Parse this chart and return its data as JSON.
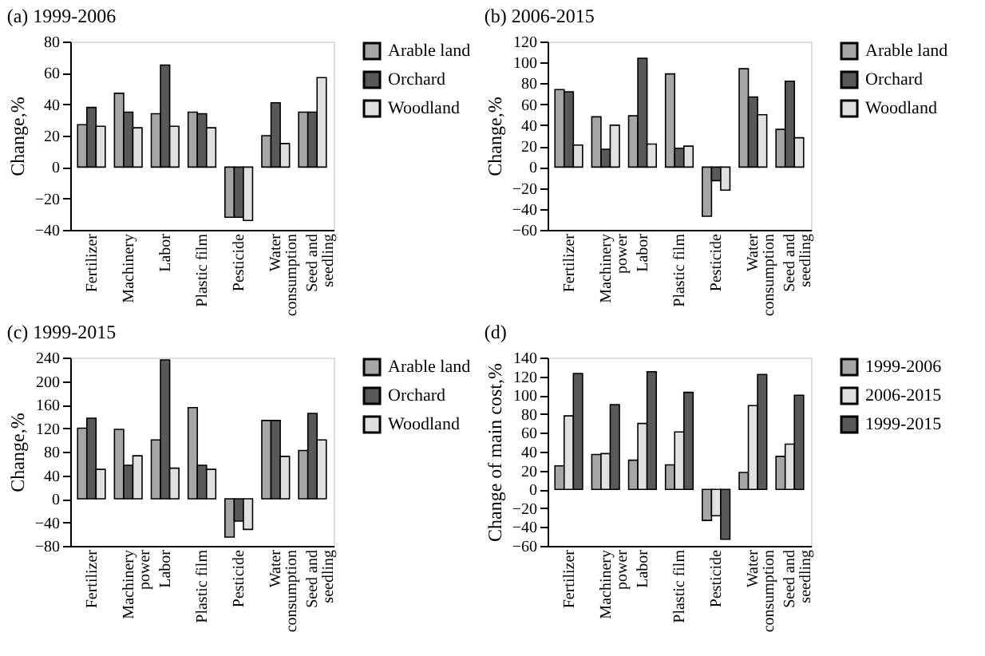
{
  "chart_data": [
    {
      "type": "bar",
      "title": "(a) 1999-2006",
      "ylabel": "Change,%",
      "categories": [
        "Fertilizer",
        "Machinery",
        "Labor",
        "Plastic film",
        "Pesticide",
        "Water\nconsumption",
        "Seed and\nseedling"
      ],
      "ylim": [
        -40,
        80
      ],
      "yticks": [
        -40,
        -20,
        0,
        20,
        40,
        60,
        80
      ],
      "legend": "right",
      "series": [
        {
          "name": "Arable land",
          "color": "#a6a6a6",
          "values": [
            27,
            47,
            34,
            35,
            -32,
            20,
            35
          ]
        },
        {
          "name": "Orchard",
          "color": "#595959",
          "values": [
            38,
            35,
            65,
            34,
            -32,
            41,
            35
          ]
        },
        {
          "name": "Woodland",
          "color": "#e0e0e0",
          "values": [
            26,
            25,
            26,
            25,
            -34,
            15,
            57
          ]
        }
      ]
    },
    {
      "type": "bar",
      "title": "(b) 2006-2015",
      "ylabel": "Change,%",
      "categories": [
        "Fertilizer",
        "Machinery\npower",
        "Labor",
        "Plastic film",
        "Pesticide",
        "Water\nconsumption",
        "Seed and\nseedling"
      ],
      "ylim": [
        -60,
        120
      ],
      "yticks": [
        -60,
        -40,
        -20,
        0,
        20,
        40,
        60,
        80,
        100,
        120
      ],
      "legend": "right",
      "series": [
        {
          "name": "Arable land",
          "color": "#a6a6a6",
          "values": [
            74,
            48,
            49,
            89,
            -47,
            94,
            36
          ]
        },
        {
          "name": "Orchard",
          "color": "#595959",
          "values": [
            72,
            17,
            104,
            18,
            -13,
            67,
            82
          ]
        },
        {
          "name": "Woodland",
          "color": "#e0e0e0",
          "values": [
            21,
            40,
            22,
            20,
            -22,
            50,
            28
          ]
        }
      ]
    },
    {
      "type": "bar",
      "title": "(c) 1999-2015",
      "ylabel": "Change,%",
      "categories": [
        "Fertilizer",
        "Machinery\npower",
        "Labor",
        "Plastic film",
        "Pesticide",
        "Water\nconsumption",
        "Seed and\nseedling"
      ],
      "ylim": [
        -80,
        240
      ],
      "yticks": [
        -80,
        -40,
        0,
        40,
        80,
        120,
        160,
        200,
        240
      ],
      "legend": "right",
      "series": [
        {
          "name": "Arable land",
          "color": "#a6a6a6",
          "values": [
            120,
            118,
            100,
            155,
            -65,
            133,
            82
          ]
        },
        {
          "name": "Orchard",
          "color": "#595959",
          "values": [
            137,
            57,
            236,
            57,
            -38,
            133,
            145
          ]
        },
        {
          "name": "Woodland",
          "color": "#e0e0e0",
          "values": [
            50,
            73,
            52,
            50,
            -52,
            72,
            100
          ]
        }
      ]
    },
    {
      "type": "bar",
      "title": "(d)",
      "ylabel": "Change of main cost,%",
      "categories": [
        "Fertilizer",
        "Machinery\npower",
        "Labor",
        "Plastic film",
        "Pesticide",
        "Water\nconsumption",
        "Seed and\nseedling"
      ],
      "ylim": [
        -60,
        140
      ],
      "yticks": [
        -60,
        -40,
        -20,
        0,
        20,
        40,
        60,
        80,
        100,
        120,
        140
      ],
      "legend": "right",
      "series": [
        {
          "name": "1999-2006",
          "color": "#a6a6a6",
          "values": [
            25,
            37,
            31,
            26,
            -33,
            18,
            35
          ]
        },
        {
          "name": "2006-2015",
          "color": "#e0e0e0",
          "values": [
            78,
            38,
            70,
            61,
            -28,
            89,
            48
          ]
        },
        {
          "name": "1999-2015",
          "color": "#595959",
          "values": [
            123,
            90,
            125,
            103,
            -53,
            122,
            100
          ]
        }
      ]
    }
  ]
}
